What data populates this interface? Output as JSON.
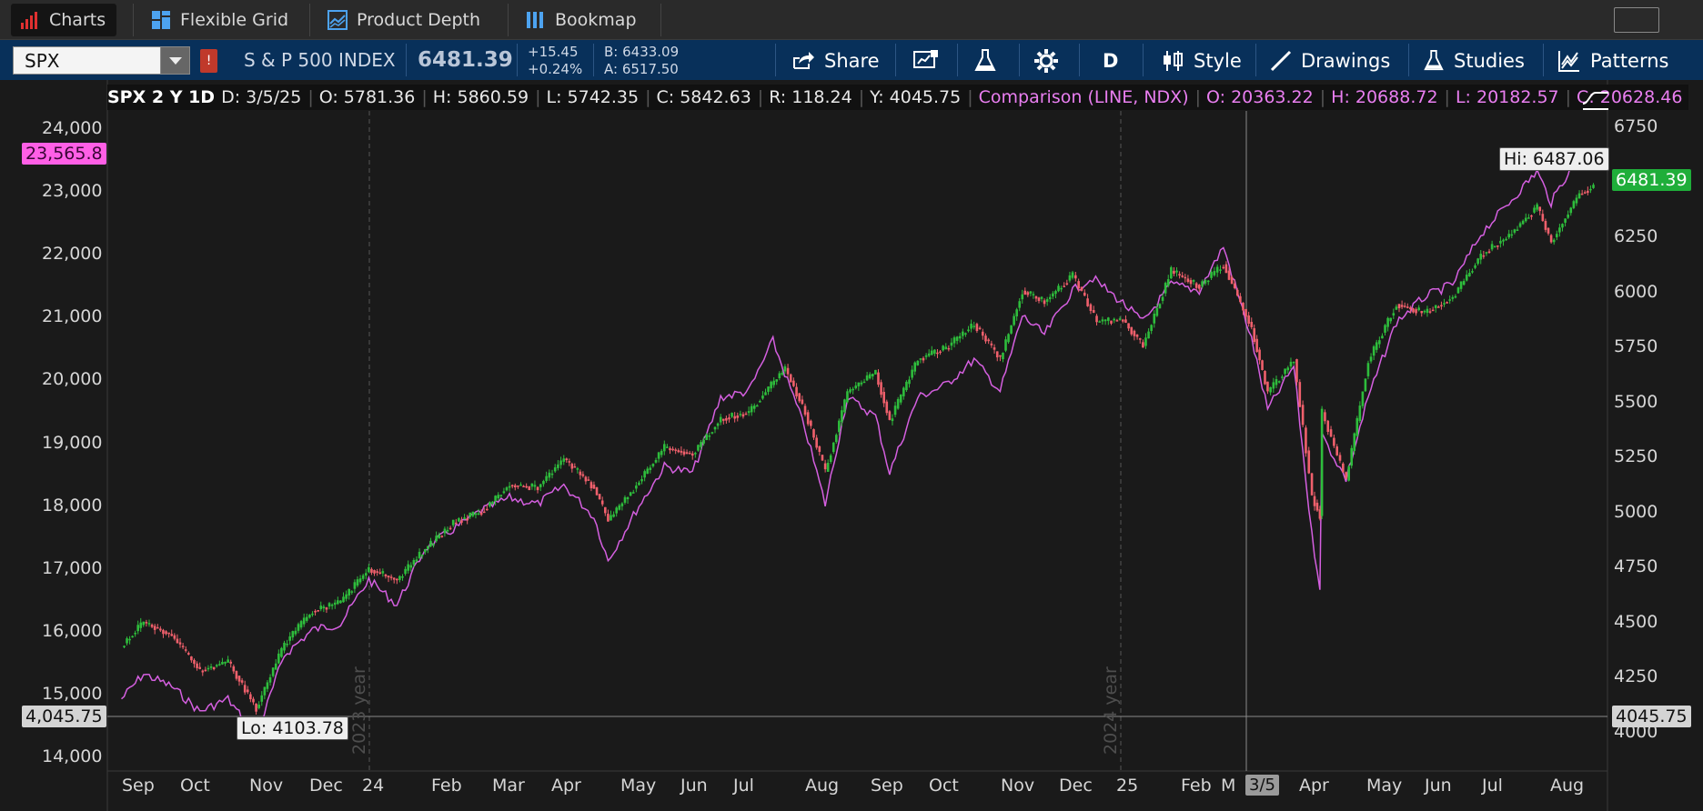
{
  "tabs": [
    {
      "label": "Charts",
      "icon": "bar-chart-icon"
    },
    {
      "label": "Flexible Grid",
      "icon": "grid-icon"
    },
    {
      "label": "Product Depth",
      "icon": "depth-icon"
    },
    {
      "label": "Bookmap",
      "icon": "bookmap-icon"
    }
  ],
  "toolbar": {
    "symbol": "SPX",
    "flag": "!",
    "description": "S & P 500 INDEX",
    "last": "6481.39",
    "change": "+15.45",
    "change_pct": "+0.24%",
    "bid": "B: 6433.09",
    "ask": "A: 6517.50",
    "share_label": "Share",
    "period_label": "D",
    "style_label": "Style",
    "drawings_label": "Drawings",
    "studies_label": "Studies",
    "patterns_label": "Patterns"
  },
  "legend": {
    "symbol": "SPX 2 Y 1D",
    "date": "D: 3/5/25",
    "open": "O: 5781.36",
    "high": "H: 5860.59",
    "low": "L: 5742.35",
    "close": "C: 5842.63",
    "range": "R: 118.24",
    "y": "Y: 4045.75",
    "comparison": "Comparison (LINE, NDX)",
    "cmp_open": "O: 20363.22",
    "cmp_high": "H: 20688.72",
    "cmp_low": "L: 20182.57",
    "cmp_close": "C: 20628.46"
  },
  "axes": {
    "left_ticks": [
      "24,000",
      "23,000",
      "22,000",
      "21,000",
      "20,000",
      "19,000",
      "18,000",
      "17,000",
      "16,000",
      "15,000",
      "14,000"
    ],
    "right_ticks": [
      "6750",
      "6500",
      "6250",
      "6000",
      "5750",
      "5500",
      "5250",
      "5000",
      "4750",
      "4500",
      "4250",
      "4000"
    ],
    "x_ticks": [
      "Sep",
      "Oct",
      "Nov",
      "Dec",
      "24",
      "Feb",
      "Mar",
      "Apr",
      "May",
      "Jun",
      "Jul",
      "Aug",
      "Sep",
      "Oct",
      "Nov",
      "Dec",
      "25",
      "Feb",
      "M",
      "Apr",
      "May",
      "Jun",
      "Jul",
      "Aug"
    ],
    "cursor_x_label": "3/5",
    "left_cursor_label": "4,045.75",
    "right_cursor_label": "4045.75",
    "ndx_last_label": "23,565.8",
    "spx_last_label": "6481.39",
    "year_2023": "2023 year",
    "year_2024": "2024 year"
  },
  "annotations": {
    "hi": "Hi: 6487.06",
    "lo": "Lo: 4103.78"
  },
  "colors": {
    "up": "#2ebd3c",
    "down": "#f0606c",
    "ndx": "#d55fe0",
    "spx_tag": "#1fae3a",
    "ndx_tag": "#ff5fe6",
    "toolbar": "#08305a"
  },
  "chart_data": {
    "type": "line",
    "series": [
      {
        "name": "SPX",
        "axis": "right",
        "x": [
          "2023-08-21",
          "2023-09-01",
          "2023-09-15",
          "2023-09-29",
          "2023-10-13",
          "2023-10-27",
          "2023-11-10",
          "2023-11-24",
          "2023-12-08",
          "2023-12-22",
          "2024-01-05",
          "2024-01-19",
          "2024-02-02",
          "2024-02-16",
          "2024-03-01",
          "2024-03-15",
          "2024-03-28",
          "2024-04-12",
          "2024-04-19",
          "2024-05-03",
          "2024-05-17",
          "2024-05-31",
          "2024-06-14",
          "2024-06-28",
          "2024-07-16",
          "2024-07-26",
          "2024-08-05",
          "2024-08-16",
          "2024-08-30",
          "2024-09-06",
          "2024-09-20",
          "2024-10-04",
          "2024-10-18",
          "2024-10-31",
          "2024-11-11",
          "2024-11-22",
          "2024-12-06",
          "2024-12-18",
          "2024-12-31",
          "2025-01-10",
          "2025-01-24",
          "2025-02-07",
          "2025-02-19",
          "2025-03-05",
          "2025-03-13",
          "2025-03-26",
          "2025-04-04",
          "2025-04-08",
          "2025-04-09",
          "2025-04-21",
          "2025-05-02",
          "2025-05-16",
          "2025-05-30",
          "2025-06-13",
          "2025-06-27",
          "2025-07-11",
          "2025-07-25",
          "2025-08-01",
          "2025-08-15",
          "2025-08-22"
        ],
        "values": [
          4400,
          4510,
          4450,
          4290,
          4330,
          4120,
          4410,
          4560,
          4600,
          4750,
          4700,
          4840,
          4960,
          5010,
          5130,
          5120,
          5250,
          5120,
          4970,
          5130,
          5300,
          5270,
          5430,
          5460,
          5660,
          5460,
          5190,
          5550,
          5640,
          5420,
          5700,
          5750,
          5860,
          5700,
          6010,
          5960,
          6080,
          5870,
          5880,
          5760,
          6100,
          6030,
          6130,
          5840,
          5550,
          5700,
          5080,
          4990,
          5460,
          5150,
          5690,
          5950,
          5910,
          5980,
          6170,
          6260,
          6390,
          6230,
          6450,
          6481
        ]
      },
      {
        "name": "NDX",
        "axis": "left",
        "x": [
          "2023-08-21",
          "2023-09-01",
          "2023-09-15",
          "2023-09-29",
          "2023-10-13",
          "2023-10-27",
          "2023-11-10",
          "2023-11-24",
          "2023-12-08",
          "2023-12-22",
          "2024-01-05",
          "2024-01-19",
          "2024-02-02",
          "2024-02-16",
          "2024-03-01",
          "2024-03-15",
          "2024-03-28",
          "2024-04-12",
          "2024-04-19",
          "2024-05-03",
          "2024-05-17",
          "2024-05-31",
          "2024-06-14",
          "2024-06-28",
          "2024-07-10",
          "2024-07-26",
          "2024-08-05",
          "2024-08-16",
          "2024-08-30",
          "2024-09-06",
          "2024-09-20",
          "2024-10-04",
          "2024-10-18",
          "2024-10-31",
          "2024-11-11",
          "2024-11-22",
          "2024-12-06",
          "2024-12-16",
          "2024-12-31",
          "2025-01-10",
          "2025-01-24",
          "2025-02-07",
          "2025-02-19",
          "2025-03-05",
          "2025-03-13",
          "2025-03-26",
          "2025-04-04",
          "2025-04-08",
          "2025-04-09",
          "2025-04-21",
          "2025-05-02",
          "2025-05-16",
          "2025-05-30",
          "2025-06-13",
          "2025-06-27",
          "2025-07-11",
          "2025-07-25",
          "2025-08-01",
          "2025-08-15",
          "2025-08-22"
        ],
        "values": [
          14900,
          15300,
          15100,
          14700,
          14900,
          14300,
          15600,
          16000,
          16100,
          16800,
          16400,
          17300,
          17600,
          17900,
          18100,
          18000,
          18300,
          17800,
          17100,
          17900,
          18600,
          18500,
          19700,
          19800,
          20600,
          19200,
          18000,
          19700,
          19400,
          18500,
          19700,
          19900,
          20300,
          19800,
          21000,
          20700,
          21400,
          21600,
          21200,
          20900,
          21500,
          21400,
          22100,
          20628,
          19500,
          20200,
          17500,
          16700,
          19100,
          18400,
          19700,
          20900,
          21300,
          21500,
          22300,
          22800,
          23300,
          22800,
          23600,
          23565.8
        ]
      }
    ],
    "title": "",
    "xlabel": "",
    "ylabel_left": "NDX",
    "ylabel_right": "SPX",
    "ylim_right": [
      3950,
      6800
    ],
    "ylim_left": [
      13900,
      24300
    ],
    "grid": false,
    "annotations": [
      {
        "text": "Hi: 6487.06",
        "x": "2025-08-15",
        "y": 6487.06
      },
      {
        "text": "Lo: 4103.78",
        "x": "2023-10-27",
        "y": 4103.78
      }
    ]
  }
}
